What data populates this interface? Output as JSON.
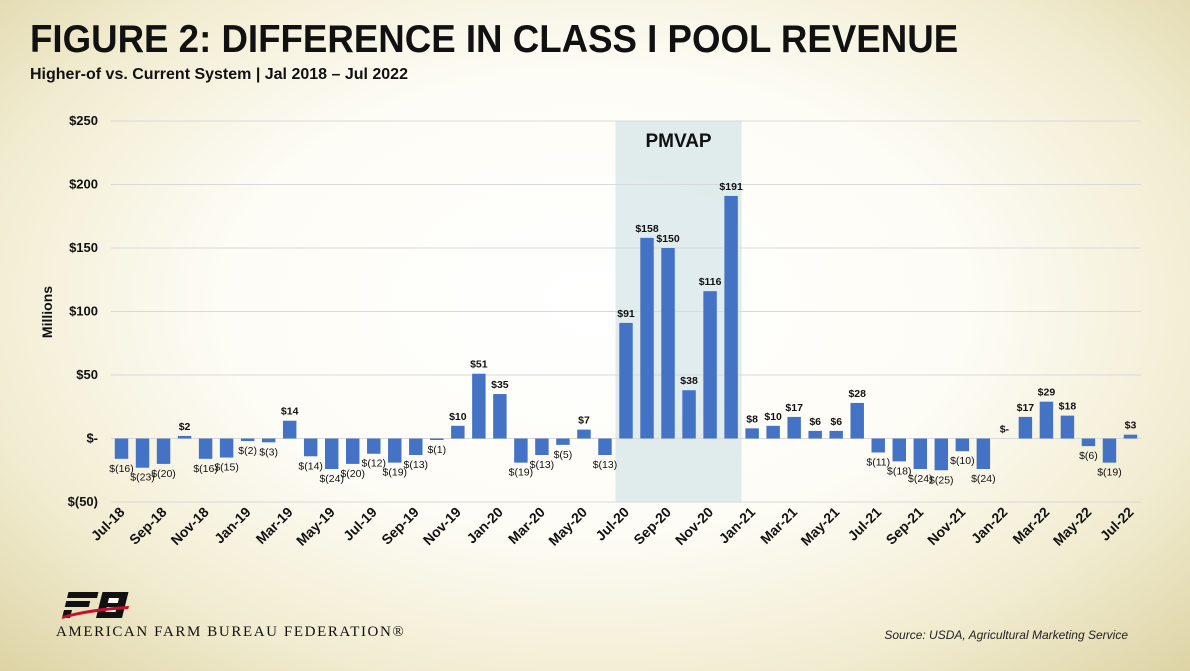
{
  "header": {
    "title": "FIGURE 2: DIFFERENCE IN CLASS I POOL REVENUE",
    "subtitle": "Higher-of vs. Current System | Jal 2018 – Jul 2022"
  },
  "footer": {
    "org_name": "AMERICAN FARM BUREAU FEDERATION®",
    "source": "Source: USDA, Agricultural Marketing Service"
  },
  "colors": {
    "bar": "#4472C4",
    "highlight": "#dbe9ea",
    "grid": "#d9d9d9",
    "text": "#111111",
    "logo_red": "#c8102e"
  },
  "chart_data": {
    "type": "bar",
    "ylabel": "Millions",
    "ylim": [
      -50,
      250
    ],
    "y_ticks": [
      250,
      200,
      150,
      100,
      50,
      0,
      -50
    ],
    "y_tick_labels": [
      "$250",
      "$200",
      "$150",
      "$100",
      "$50",
      "$-",
      "$(50)"
    ],
    "grid": true,
    "annotation": {
      "label": "PMVAP",
      "start": "Jul-20",
      "end": "Dec-20"
    },
    "categories": [
      "Jul-18",
      "Aug-18",
      "Sep-18",
      "Oct-18",
      "Nov-18",
      "Dec-18",
      "Jan-19",
      "Feb-19",
      "Mar-19",
      "Apr-19",
      "May-19",
      "Jun-19",
      "Jul-19",
      "Aug-19",
      "Sep-19",
      "Oct-19",
      "Nov-19",
      "Dec-19",
      "Jan-20",
      "Feb-20",
      "Mar-20",
      "Apr-20",
      "May-20",
      "Jun-20",
      "Jul-20",
      "Aug-20",
      "Sep-20",
      "Oct-20",
      "Nov-20",
      "Dec-20",
      "Jan-21",
      "Feb-21",
      "Mar-21",
      "Apr-21",
      "May-21",
      "Jun-21",
      "Jul-21",
      "Aug-21",
      "Sep-21",
      "Oct-21",
      "Nov-21",
      "Dec-21",
      "Jan-22",
      "Feb-22",
      "Mar-22",
      "Apr-22",
      "May-22",
      "Jun-22",
      "Jul-22"
    ],
    "x_tick_labels": [
      "Jul-18",
      "Sep-18",
      "Nov-18",
      "Jan-19",
      "Mar-19",
      "May-19",
      "Jul-19",
      "Sep-19",
      "Nov-19",
      "Jan-20",
      "Mar-20",
      "May-20",
      "Jul-20",
      "Sep-20",
      "Nov-20",
      "Jan-21",
      "Mar-21",
      "May-21",
      "Jul-21",
      "Sep-21",
      "Nov-21",
      "Jan-22",
      "Mar-22",
      "May-22",
      "Jul-22"
    ],
    "values": [
      -16,
      -23,
      -20,
      2,
      -16,
      -15,
      -2,
      -3,
      14,
      -14,
      -24,
      -20,
      -12,
      -19,
      -13,
      -1,
      10,
      51,
      35,
      -19,
      -13,
      -5,
      7,
      -13,
      91,
      158,
      150,
      38,
      116,
      191,
      8,
      10,
      17,
      6,
      6,
      28,
      -11,
      -18,
      -24,
      -25,
      -10,
      -24,
      0,
      17,
      29,
      18,
      -6,
      -19,
      3
    ],
    "data_labels": [
      "$(16)",
      "$(23)",
      "$(20)",
      "$2",
      "$(16)",
      "$(15)",
      "$(2)",
      "$(3)",
      "$14",
      "$(14)",
      "$(24)",
      "$(20)",
      "$(12)",
      "$(19)",
      "$(13)",
      "$(1)",
      "$10",
      "$51",
      "$35",
      "$(19)",
      "$(13)",
      "$(5)",
      "$7",
      "$(13)",
      "$91",
      "$158",
      "$150",
      "$38",
      "$116",
      "$191",
      "$8",
      "$10",
      "$17",
      "$6",
      "$6",
      "$28",
      "$(11)",
      "$(18)",
      "$(24)",
      "$(25)",
      "$(10)",
      "$(24)",
      "$-",
      "$17",
      "$29",
      "$18",
      "$(6)",
      "$(19)",
      "$3"
    ]
  }
}
